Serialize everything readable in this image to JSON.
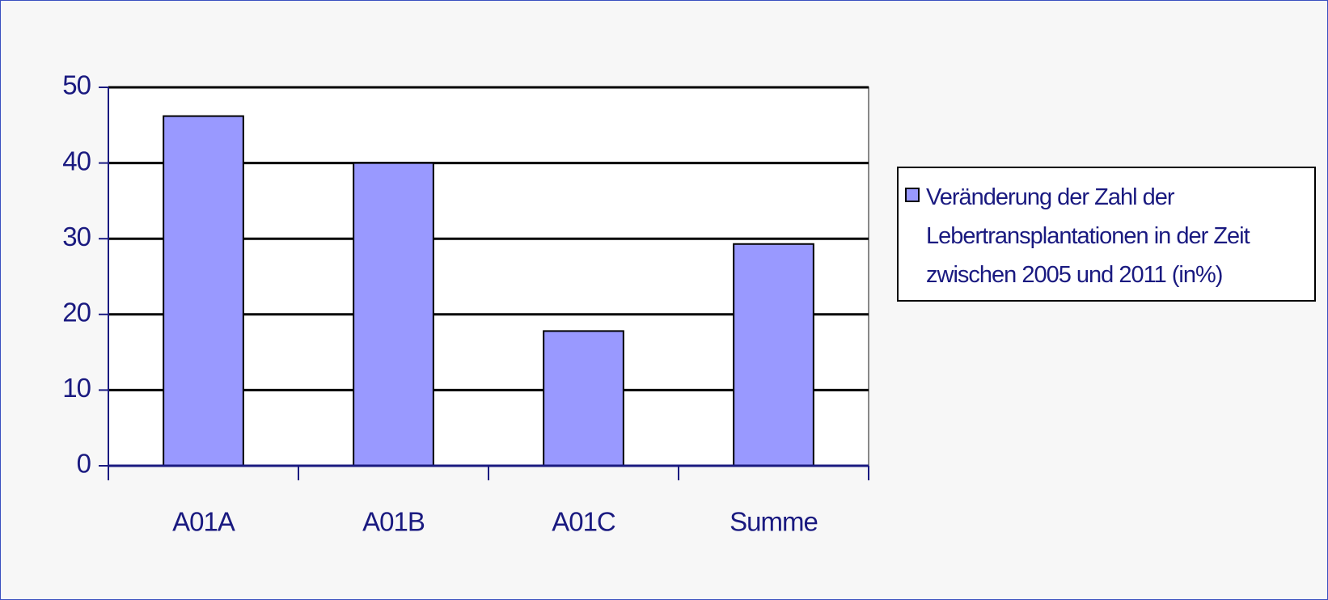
{
  "chart_data": {
    "type": "bar",
    "categories": [
      "A01A",
      "A01B",
      "A01C",
      "Summe"
    ],
    "series": [
      {
        "name": "Veränderung der Zahl der Lebertransplantationen in der Zeit zwischen 2005 und 2011 (in%)",
        "color": "#9999ff",
        "values": [
          46.2,
          40,
          17.8,
          29.3
        ]
      }
    ],
    "ylim": [
      0,
      50
    ],
    "yticks": [
      0,
      10,
      20,
      30,
      40,
      50
    ],
    "grid": true,
    "legend": "right"
  }
}
